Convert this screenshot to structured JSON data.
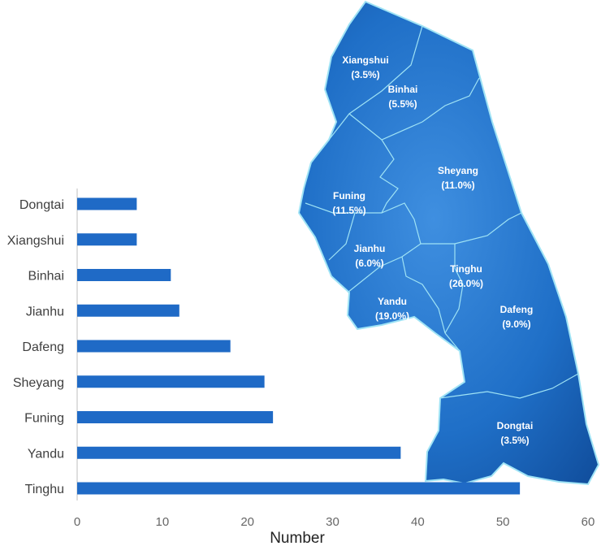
{
  "chart_data": {
    "type": "bar",
    "orientation": "horizontal",
    "categories": [
      "Dongtai",
      "Xiangshui",
      "Binhai",
      "Jianhu",
      "Dafeng",
      "Sheyang",
      "Funing",
      "Yandu",
      "Tinghu"
    ],
    "values": [
      7,
      7,
      11,
      12,
      18,
      22,
      23,
      38,
      52
    ],
    "xlabel": "Number",
    "xlim": [
      0,
      60
    ],
    "xticks": [
      "0",
      "10",
      "20",
      "30",
      "40",
      "50",
      "60"
    ],
    "bar_color": "#1f6ac6",
    "grid": false
  },
  "map": {
    "fill_color": "#1f6fc7",
    "border_color": "#9fe3f5",
    "regions": [
      {
        "name": "Xiangshui",
        "percent": "(3.5%)"
      },
      {
        "name": "Binhai",
        "percent": "(5.5%)"
      },
      {
        "name": "Sheyang",
        "percent": "(11.0%)"
      },
      {
        "name": "Funing",
        "percent": "(11.5%)"
      },
      {
        "name": "Jianhu",
        "percent": "(6.0%)"
      },
      {
        "name": "Tinghu",
        "percent": "(26.0%)"
      },
      {
        "name": "Yandu",
        "percent": "(19.0%)"
      },
      {
        "name": "Dafeng",
        "percent": "(9.0%)"
      },
      {
        "name": "Dongtai",
        "percent": "(3.5%)"
      }
    ]
  }
}
